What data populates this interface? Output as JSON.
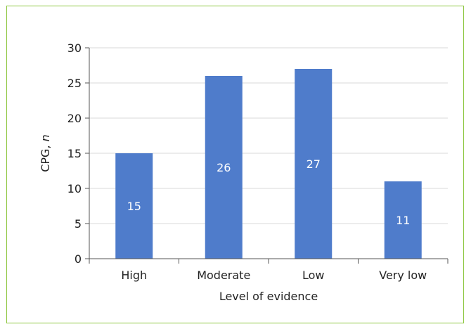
{
  "chart_data": {
    "type": "bar",
    "categories": [
      "High",
      "Moderate",
      "Low",
      "Very low"
    ],
    "values": [
      15,
      26,
      27,
      11
    ],
    "data_labels": [
      "15",
      "26",
      "27",
      "11"
    ],
    "title": "",
    "xlabel": "Level of evidence",
    "ylabel_main": "CPG, ",
    "ylabel_italic": "n",
    "ylim": [
      0,
      30
    ],
    "yticks": [
      0,
      5,
      10,
      15,
      20,
      25,
      30
    ],
    "grid": true,
    "legend": "none",
    "bar_color": "#4f7ccb",
    "grid_color": "#d9d9d9",
    "border_color": "#8dc63f"
  }
}
